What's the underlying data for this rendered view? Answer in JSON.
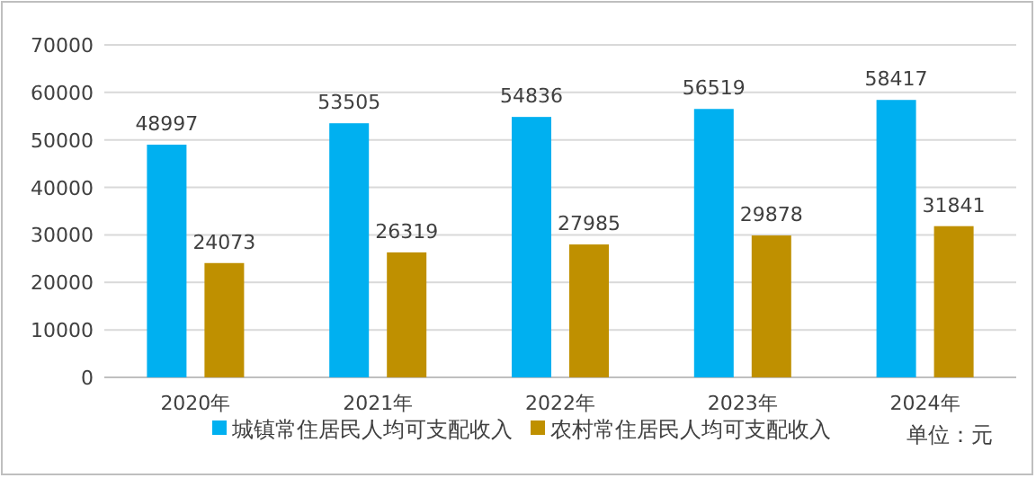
{
  "chart_data": {
    "type": "bar",
    "categories": [
      "2020年",
      "2021年",
      "2022年",
      "2023年",
      "2024年"
    ],
    "series": [
      {
        "name": "城镇常住居民人均可支配收入",
        "color": "#00b0f0",
        "values": [
          48997,
          53505,
          54836,
          56519,
          58417
        ]
      },
      {
        "name": "农村常住居民人均可支配收入",
        "color": "#bf9000",
        "values": [
          24073,
          26319,
          27985,
          29878,
          31841
        ]
      }
    ],
    "ylim": [
      0,
      70000
    ],
    "yticks": [
      0,
      10000,
      20000,
      30000,
      40000,
      50000,
      60000,
      70000
    ],
    "grid": "y",
    "legend": "bottom",
    "data_labels": true,
    "annotations": [
      "单位：元"
    ]
  }
}
